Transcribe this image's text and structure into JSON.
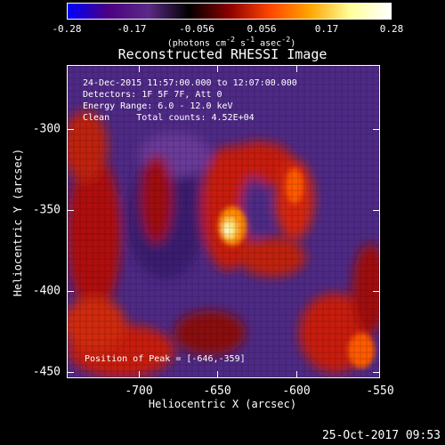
{
  "colorbar": {
    "ticks": [
      "-0.28",
      "-0.17",
      "-0.056",
      "0.056",
      "0.17",
      "0.28"
    ],
    "units_prefix": "(photons cm",
    "units_exp1": "-2",
    "units_mid1": " s",
    "units_exp2": "-1",
    "units_mid2": " asec",
    "units_exp3": "-2",
    "units_suffix": ")",
    "colors": [
      "#0000ff",
      "#4b0082",
      "#5b2a86",
      "#000000",
      "#8b0000",
      "#ff4500",
      "#ffa500",
      "#ffff99",
      "#ffffff"
    ]
  },
  "title": "Reconstructed RHESSI Image",
  "info": {
    "line1": "24-Dec-2015 11:57:00.000 to 12:07:00.000",
    "line2": "Detectors: 1F 5F 7F, Att 0",
    "line3": "Energy Range: 6.0 - 12.0 keV",
    "line4": "Clean     Total counts: 4.52E+04"
  },
  "peak_label": "Position of Peak = [-646,-359]",
  "axes": {
    "xlabel": "Heliocentric X (arcsec)",
    "ylabel": "Heliocentric Y (arcsec)",
    "xticks": [
      "-700",
      "-650",
      "-600",
      "-550"
    ],
    "yticks": [
      "-300",
      "-350",
      "-400",
      "-450"
    ]
  },
  "datestamp": "25-Oct-2017 09:53"
}
